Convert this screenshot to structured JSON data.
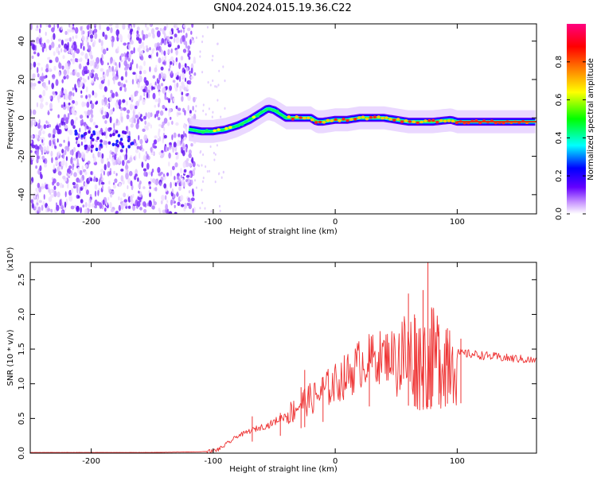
{
  "figure_title": "GN04.2024.015.19.36.C22",
  "chart_data": [
    {
      "type": "heatmap",
      "title": "GN04.2024.015.19.36.C22",
      "xlabel": "Height of straight line (km)",
      "ylabel": "Frequency (Hz)",
      "xlim": [
        -250,
        165
      ],
      "ylim": [
        -50,
        49
      ],
      "x_ticks": [
        -200,
        -100,
        0,
        100
      ],
      "x_tick_labels": [
        "-200",
        "-100",
        "0",
        "100"
      ],
      "y_ticks": [
        -40,
        -20,
        0,
        20,
        40
      ],
      "y_tick_labels": [
        "-40",
        "-20",
        "0",
        "20",
        "40"
      ],
      "colorbar": {
        "label": "Normalized spectral amplitude",
        "range": [
          0,
          1
        ],
        "ticks": [
          0.0,
          0.2,
          0.4,
          0.6,
          0.8
        ],
        "tick_labels": [
          "0.0",
          "0.2",
          "0.4",
          "0.6",
          "0.8"
        ],
        "colors": [
          "#ffffff",
          "#c896ff",
          "#6400ff",
          "#0000ff",
          "#00ffff",
          "#00ff00",
          "#ffff00",
          "#ff8000",
          "#ff0000",
          "#ff0080"
        ]
      },
      "noise_region_x": [
        -250,
        -115
      ],
      "ridge": {
        "x": [
          -120,
          -110,
          -100,
          -90,
          -80,
          -70,
          -60,
          -55,
          -50,
          -45,
          -40,
          -30,
          -20,
          -15,
          -10,
          0,
          10,
          20,
          40,
          60,
          80,
          95,
          100,
          120,
          140,
          165
        ],
        "y": [
          -6,
          -7,
          -7,
          -6,
          -4,
          -1,
          3,
          5,
          4,
          2,
          0,
          0,
          0,
          -2,
          -2,
          -1,
          -1,
          0,
          0,
          -2,
          -2,
          -1,
          -2,
          -2,
          -2,
          -2
        ]
      }
    },
    {
      "type": "line",
      "xlabel": "Height of straight line (km)",
      "ylabel": "SNR (10 * v/v)",
      "y_scale_label": "(x10⁴)",
      "xlim": [
        -250,
        165
      ],
      "ylim": [
        0,
        2.75
      ],
      "x_ticks": [
        -200,
        -100,
        0,
        100
      ],
      "x_tick_labels": [
        "-200",
        "-100",
        "0",
        "100"
      ],
      "y_ticks": [
        0.0,
        0.5,
        1.0,
        1.5,
        2.0,
        2.5
      ],
      "y_tick_labels": [
        "0.0",
        "0.5",
        "1.0",
        "1.5",
        "2.0",
        "2.5"
      ],
      "series": [
        {
          "name": "SNR",
          "color": "#ee3333",
          "x": [
            -250,
            -200,
            -150,
            -110,
            -100,
            -95,
            -90,
            -85,
            -80,
            -75,
            -70,
            -65,
            -60,
            -55,
            -50,
            -45,
            -40,
            -35,
            -30,
            -25,
            -20,
            -15,
            -10,
            -5,
            0,
            5,
            10,
            15,
            20,
            25,
            30,
            35,
            40,
            45,
            50,
            55,
            60,
            65,
            70,
            75,
            80,
            85,
            90,
            95,
            100,
            110,
            120,
            130,
            140,
            150,
            165
          ],
          "y": [
            0.01,
            0.01,
            0.01,
            0.02,
            0.03,
            0.06,
            0.12,
            0.18,
            0.25,
            0.28,
            0.32,
            0.35,
            0.38,
            0.4,
            0.45,
            0.5,
            0.55,
            0.6,
            0.7,
            0.75,
            0.78,
            0.82,
            0.9,
            0.95,
            1.0,
            1.07,
            1.12,
            1.2,
            1.28,
            1.33,
            1.36,
            1.38,
            1.4,
            1.42,
            1.4,
            1.38,
            1.37,
            1.35,
            1.33,
            1.32,
            1.35,
            1.4,
            1.42,
            1.44,
            1.44,
            1.43,
            1.41,
            1.39,
            1.37,
            1.36,
            1.33
          ]
        }
      ],
      "spikes": [
        {
          "x": -68,
          "y": 0.53
        },
        {
          "x": -45,
          "y": 0.58
        },
        {
          "x": -28,
          "y": 0.95
        },
        {
          "x": -25,
          "y": 1.2
        },
        {
          "x": -10,
          "y": 1.1
        },
        {
          "x": 28,
          "y": 1.65
        },
        {
          "x": 60,
          "y": 2.3
        },
        {
          "x": 65,
          "y": 2.0
        },
        {
          "x": 72,
          "y": 2.35
        },
        {
          "x": 76,
          "y": 2.75
        },
        {
          "x": 79,
          "y": 2.1
        },
        {
          "x": 85,
          "y": 1.75
        },
        {
          "x": 92,
          "y": 1.8
        },
        {
          "x": 103,
          "y": 1.65
        }
      ]
    }
  ]
}
